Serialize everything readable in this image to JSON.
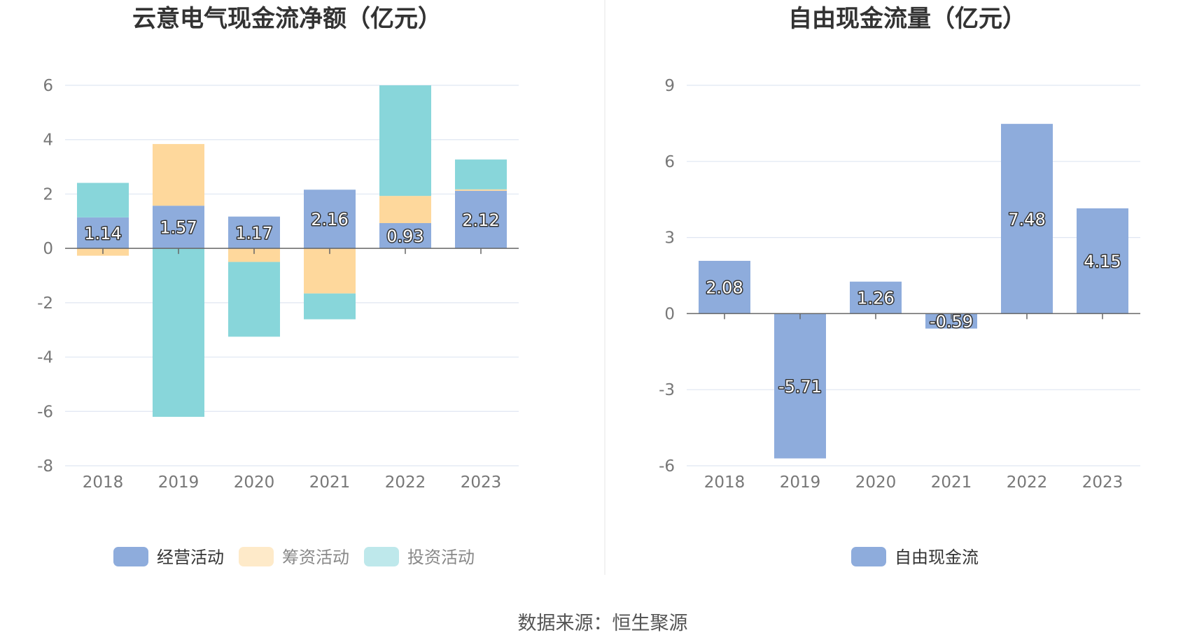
{
  "chart_data": [
    {
      "type": "bar",
      "stacked": true,
      "title": "云意电气现金流净额（亿元）",
      "categories": [
        "2018",
        "2019",
        "2020",
        "2021",
        "2022",
        "2023"
      ],
      "ylim": [
        -8,
        6
      ],
      "yticks": [
        6,
        4,
        2,
        0,
        -2,
        -4,
        -6,
        -8
      ],
      "grid": true,
      "legend_position": "bottom",
      "series": [
        {
          "name": "经营活动",
          "color": "#8eacdc",
          "values": [
            1.14,
            1.57,
            1.17,
            2.16,
            0.93,
            2.12
          ],
          "labeled": true
        },
        {
          "name": "筹资活动",
          "color": "#fed89c",
          "values": [
            -0.27,
            2.27,
            -0.5,
            -1.66,
            1.0,
            0.05
          ],
          "labeled": false
        },
        {
          "name": "投资活动",
          "color": "#88d6da",
          "values": [
            1.27,
            -6.2,
            -2.75,
            -0.95,
            4.07,
            1.1
          ],
          "labeled": false
        }
      ]
    },
    {
      "type": "bar",
      "title": "自由现金流量（亿元）",
      "categories": [
        "2018",
        "2019",
        "2020",
        "2021",
        "2022",
        "2023"
      ],
      "ylim": [
        -6,
        9
      ],
      "yticks": [
        9,
        6,
        3,
        0,
        -3,
        -6
      ],
      "grid": true,
      "legend_position": "bottom",
      "series": [
        {
          "name": "自由现金流",
          "color": "#8eacdc",
          "values": [
            2.08,
            -5.71,
            1.26,
            -0.59,
            7.48,
            4.15
          ],
          "labeled": true
        }
      ]
    }
  ],
  "source": "数据来源：恒生聚源",
  "colors": {
    "grid": "#dfe6f2",
    "axis": "#666666",
    "divider": "#eeeeee",
    "label_stroke": "#333333"
  }
}
